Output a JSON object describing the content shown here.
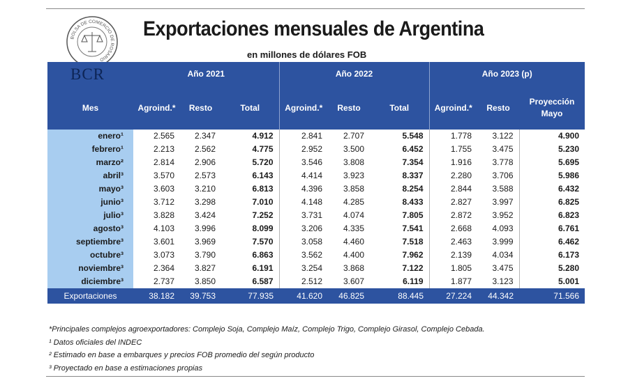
{
  "header": {
    "title": "Exportaciones mensuales de Argentina",
    "subtitle": "en millones de dólares FOB",
    "logo_text": "BCR",
    "seal_text": "BOLSA DE COMERCIO DE ROSARIO"
  },
  "table": {
    "group_headers": [
      "Año 2021",
      "Año 2022",
      "Año 2023 (p)"
    ],
    "column_headers": [
      "Mes",
      "Agroind.*",
      "Resto",
      "Total",
      "Agroind.*",
      "Resto",
      "Total",
      "Agroind.*",
      "Resto",
      "Proyección Mayo"
    ],
    "rows": [
      {
        "month": "enero¹",
        "values": [
          "2.565",
          "2.347",
          "4.912",
          "2.841",
          "2.707",
          "5.548",
          "1.778",
          "3.122",
          "4.900"
        ]
      },
      {
        "month": "febrero¹",
        "values": [
          "2.213",
          "2.562",
          "4.775",
          "2.952",
          "3.500",
          "6.452",
          "1.755",
          "3.475",
          "5.230"
        ]
      },
      {
        "month": "marzo²",
        "values": [
          "2.814",
          "2.906",
          "5.720",
          "3.546",
          "3.808",
          "7.354",
          "1.916",
          "3.778",
          "5.695"
        ]
      },
      {
        "month": "abril³",
        "values": [
          "3.570",
          "2.573",
          "6.143",
          "4.414",
          "3.923",
          "8.337",
          "2.280",
          "3.706",
          "5.986"
        ]
      },
      {
        "month": "mayo³",
        "values": [
          "3.603",
          "3.210",
          "6.813",
          "4.396",
          "3.858",
          "8.254",
          "2.844",
          "3.588",
          "6.432"
        ]
      },
      {
        "month": "junio³",
        "values": [
          "3.712",
          "3.298",
          "7.010",
          "4.148",
          "4.285",
          "8.433",
          "2.827",
          "3.997",
          "6.825"
        ]
      },
      {
        "month": "julio³",
        "values": [
          "3.828",
          "3.424",
          "7.252",
          "3.731",
          "4.074",
          "7.805",
          "2.872",
          "3.952",
          "6.823"
        ]
      },
      {
        "month": "agosto³",
        "values": [
          "4.103",
          "3.996",
          "8.099",
          "3.206",
          "4.335",
          "7.541",
          "2.668",
          "4.093",
          "6.761"
        ]
      },
      {
        "month": "septiembre³",
        "values": [
          "3.601",
          "3.969",
          "7.570",
          "3.058",
          "4.460",
          "7.518",
          "2.463",
          "3.999",
          "6.462"
        ]
      },
      {
        "month": "octubre³",
        "values": [
          "3.073",
          "3.790",
          "6.863",
          "3.562",
          "4.400",
          "7.962",
          "2.139",
          "4.034",
          "6.173"
        ]
      },
      {
        "month": "noviembre³",
        "values": [
          "2.364",
          "3.827",
          "6.191",
          "3.254",
          "3.868",
          "7.122",
          "1.805",
          "3.475",
          "5.280"
        ]
      },
      {
        "month": "diciembre³",
        "values": [
          "2.737",
          "3.850",
          "6.587",
          "2.512",
          "3.607",
          "6.119",
          "1.877",
          "3.123",
          "5.001"
        ]
      }
    ],
    "footer": {
      "label": "Exportaciones",
      "values": [
        "38.182",
        "39.753",
        "77.935",
        "41.620",
        "46.825",
        "88.445",
        "27.224",
        "44.342",
        "71.566"
      ]
    }
  },
  "notes": [
    "*Principales complejos agroexportadores: Complejo Soja, Complejo Maíz, Complejo Trigo, Complejo Girasol, Complejo Cebada.",
    "¹ Datos oficiales del INDEC",
    "² Estimado en base a embarques y precios FOB promedio del según producto",
    "³ Proyectado en base a estimaciones propias"
  ],
  "colors": {
    "header_blue": "#2d53a0",
    "month_column": "#a8cdf0"
  }
}
